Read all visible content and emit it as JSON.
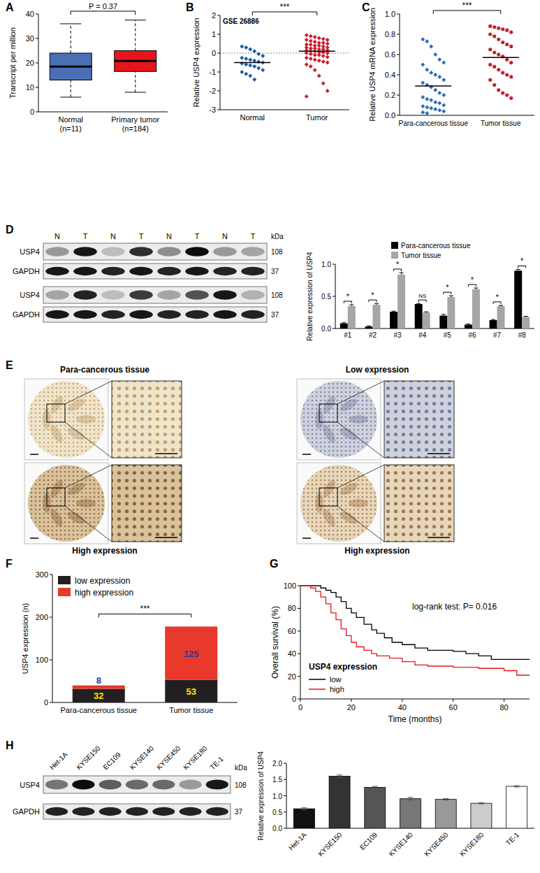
{
  "panels": [
    "A",
    "B",
    "C",
    "D",
    "E",
    "F",
    "G",
    "H"
  ],
  "chart_data": [
    {
      "type": "box",
      "y_label": "Transcript per million",
      "categories": [
        "Normal",
        "Primary tumor"
      ],
      "category_notes": [
        "(n=11)",
        "(n=184)"
      ],
      "boxes": [
        {
          "min": 6,
          "q1": 13,
          "median": 18.5,
          "q3": 24,
          "max": 36
        },
        {
          "min": 8,
          "q1": 16.5,
          "median": 20.8,
          "q3": 25,
          "max": 37.5
        }
      ],
      "colors": [
        "#4a6fb5",
        "#e8141b"
      ],
      "ylim": [
        0,
        40
      ],
      "yticks": [
        0,
        10,
        20,
        30,
        40
      ],
      "annotations": [
        "P = 0.37"
      ]
    },
    {
      "type": "scatter",
      "title": "GSE 26886",
      "y_label": "Relative USP4 expression",
      "categories": [
        "Normal",
        "Tumor"
      ],
      "groups": [
        {
          "color": "#1f5aa6",
          "marker": "diamond",
          "values": [
            0.35,
            0.3,
            0.2,
            0.1,
            -0.05,
            -0.15,
            -0.25,
            -0.3,
            -0.35,
            -0.4,
            -0.45,
            -0.5,
            -0.55,
            -0.6,
            -0.65,
            -0.7,
            -0.8,
            -0.9,
            -1.0,
            -1.1,
            -1.2,
            -1.4
          ],
          "mean": -0.5
        },
        {
          "color": "#c8202a",
          "marker": "diamond",
          "values": [
            0.95,
            0.9,
            0.85,
            0.8,
            0.75,
            0.7,
            0.7,
            0.65,
            0.6,
            0.55,
            0.55,
            0.5,
            0.45,
            0.45,
            0.4,
            0.4,
            0.35,
            0.3,
            0.3,
            0.25,
            0.25,
            0.2,
            0.2,
            0.15,
            0.15,
            0.1,
            0.1,
            0.05,
            0.05,
            0,
            0,
            -0.05,
            -0.1,
            -0.1,
            -0.15,
            -0.2,
            -0.25,
            -0.3,
            -0.35,
            -0.4,
            -0.45,
            -0.5,
            -0.6,
            -0.7,
            -0.9,
            -1.2,
            -1.6,
            -2.0,
            -2.3
          ],
          "mean": 0.1
        }
      ],
      "reference_line": 0,
      "ylim": [
        -3,
        2
      ],
      "yticks": [
        -3,
        -2,
        -1,
        0,
        1,
        2
      ],
      "annotations": [
        "***"
      ]
    },
    {
      "type": "scatter",
      "y_label": "Relative USP4 mRNA expression",
      "categories": [
        "Para-cancerous tissue",
        "Tumor tissue"
      ],
      "groups": [
        {
          "color": "#2e6db4",
          "marker": "diamond",
          "values": [
            0.75,
            0.73,
            0.68,
            0.6,
            0.55,
            0.52,
            0.5,
            0.45,
            0.42,
            0.4,
            0.38,
            0.35,
            0.32,
            0.3,
            0.28,
            0.25,
            0.22,
            0.2,
            0.18,
            0.16,
            0.15,
            0.13,
            0.12,
            0.1,
            0.09,
            0.08,
            0.07,
            0.06,
            0.05,
            0.04,
            0.03,
            0.02
          ],
          "mean": 0.29
        },
        {
          "color": "#c0232d",
          "marker": "circle",
          "values": [
            0.88,
            0.87,
            0.86,
            0.85,
            0.84,
            0.82,
            0.8,
            0.78,
            0.75,
            0.72,
            0.7,
            0.68,
            0.65,
            0.62,
            0.6,
            0.58,
            0.55,
            0.52,
            0.5,
            0.48,
            0.45,
            0.42,
            0.4,
            0.38,
            0.35,
            0.3,
            0.25,
            0.22,
            0.2,
            0.17
          ],
          "mean": 0.57
        }
      ],
      "ylim": [
        0,
        1.0
      ],
      "yticks": [
        {
          "value": 0,
          "label": "0.0"
        },
        {
          "value": 0.2,
          "label": "0.2"
        },
        {
          "value": 0.4,
          "label": "0.4"
        },
        {
          "value": 0.6,
          "label": "0.6"
        },
        {
          "value": 0.8,
          "label": "0.8"
        },
        {
          "value": 1.0,
          "label": "1.0"
        }
      ],
      "annotations": [
        "***"
      ]
    },
    {
      "type": "bar",
      "y_label": "Relative expression of USP4",
      "categories": [
        "#1",
        "#2",
        "#3",
        "#4",
        "#5",
        "#6",
        "#7",
        "#8"
      ],
      "series": [
        {
          "name": "Para-cancerous tissue",
          "color": "#000000",
          "values": [
            0.08,
            0.03,
            0.26,
            0.38,
            0.2,
            0.06,
            0.13,
            0.9
          ],
          "errors": [
            0.01,
            0.01,
            0.01,
            0.01,
            0.02,
            0.01,
            0.01,
            0.02
          ]
        },
        {
          "name": "Tumor tissue",
          "color": "#a6a6a6",
          "values": [
            0.35,
            0.37,
            0.84,
            0.25,
            0.49,
            0.61,
            0.35,
            0.18
          ],
          "errors": [
            0.02,
            0.02,
            0.03,
            0.01,
            0.02,
            0.02,
            0.01,
            0.01
          ]
        }
      ],
      "legend": "top",
      "ylim": [
        0,
        1.0
      ],
      "yticks": [
        {
          "value": 0,
          "label": "0.0"
        },
        {
          "value": 0.5,
          "label": "0.5"
        },
        {
          "value": 1.0,
          "label": "1.0"
        }
      ],
      "annotations": [
        "*",
        "*",
        "*",
        "NS",
        "*",
        "*",
        "*",
        "*"
      ]
    },
    {
      "type": "bar",
      "stacked": true,
      "data_labels": true,
      "y_label": "USP4  expression (n)",
      "categories": [
        "Para-cancerous tissue",
        "Tumor tissue"
      ],
      "series": [
        {
          "name": "low expression",
          "color": "#231f20",
          "values": [
            32,
            53
          ]
        },
        {
          "name": "high expression",
          "color": "#e8392a",
          "values": [
            8,
            125
          ]
        }
      ],
      "legend": "upper left",
      "ylim": [
        0,
        300
      ],
      "yticks": [
        0,
        100,
        200,
        300
      ],
      "annotations": [
        "***"
      ]
    },
    {
      "type": "line",
      "line_style": "step",
      "x_label": "Time (months)",
      "y_label": "Overall survival (%)",
      "legend": "lower left",
      "legend_title": "USP4 expression",
      "series": [
        {
          "name": "low",
          "color": "#000000",
          "x": [
            0,
            5,
            8,
            10,
            12,
            14,
            16,
            18,
            20,
            22,
            25,
            28,
            30,
            33,
            36,
            40,
            45,
            50,
            55,
            60,
            65,
            70,
            75,
            80,
            85,
            90
          ],
          "values": [
            100,
            100,
            98,
            96,
            94,
            90,
            86,
            80,
            76,
            72,
            66,
            61,
            58,
            54,
            50,
            48,
            45,
            43,
            43,
            42,
            40,
            38,
            35,
            35,
            35,
            35
          ]
        },
        {
          "name": "high",
          "color": "#e8141b",
          "x": [
            0,
            4,
            6,
            8,
            10,
            12,
            14,
            16,
            18,
            20,
            22,
            25,
            28,
            30,
            35,
            40,
            45,
            50,
            60,
            70,
            80,
            85,
            90
          ],
          "values": [
            100,
            98,
            95,
            90,
            84,
            76,
            70,
            62,
            56,
            50,
            46,
            43,
            40,
            38,
            36,
            33,
            30,
            29,
            28,
            27,
            25,
            21,
            21
          ]
        }
      ],
      "xlim": [
        0,
        90
      ],
      "xticks": [
        0,
        20,
        40,
        60,
        80
      ],
      "ylim": [
        0,
        100
      ],
      "yticks": [
        0,
        20,
        40,
        60,
        80,
        100
      ],
      "annotations": [
        "log-rank test: P= 0.016"
      ]
    },
    {
      "type": "bar",
      "y_label": "Relative expression of USP4",
      "categories": [
        "Het-1A",
        "KYSE150",
        "EC109",
        "KYSE140",
        "KYSE450",
        "KYSE180",
        "TE-1"
      ],
      "values": [
        0.6,
        1.6,
        1.26,
        0.91,
        0.89,
        0.77,
        1.29
      ],
      "errors": [
        0.03,
        0.04,
        0.03,
        0.04,
        0.02,
        0.02,
        0.02
      ],
      "colors": [
        "#111111",
        "#333333",
        "#555555",
        "#777777",
        "#999999",
        "#cccccc",
        "#ffffff"
      ],
      "ylim": [
        0,
        2.0
      ],
      "yticks": [
        {
          "value": 0,
          "label": "0.0"
        },
        {
          "value": 0.5,
          "label": "0.5"
        },
        {
          "value": 1.0,
          "label": "1.0"
        },
        {
          "value": 1.5,
          "label": "1.5"
        },
        {
          "value": 2.0,
          "label": "2.0"
        }
      ]
    }
  ],
  "blots": [
    {
      "lanes": [
        "N",
        "T",
        "N",
        "T",
        "N",
        "T",
        "N",
        "T"
      ],
      "unit": "kDa",
      "rows": [
        {
          "label": "USP4",
          "kda": 108,
          "intensity": [
            0.35,
            0.9,
            0.2,
            0.8,
            0.4,
            0.95,
            0.35,
            0.3
          ]
        },
        {
          "label": "GAPDH",
          "kda": 37,
          "intensity": [
            0.9,
            0.9,
            0.85,
            0.9,
            0.85,
            0.9,
            0.85,
            0.85
          ]
        },
        {
          "label": "USP4",
          "kda": 108,
          "intensity": [
            0.3,
            0.85,
            0.2,
            0.75,
            0.3,
            0.65,
            0.9,
            0.25
          ]
        },
        {
          "label": "GAPDH",
          "kda": 37,
          "intensity": [
            0.9,
            0.9,
            0.85,
            0.9,
            0.85,
            0.85,
            0.9,
            0.85
          ]
        }
      ]
    },
    {
      "lanes": [
        "Het-1A",
        "KYSE150",
        "EC109",
        "KYSE140",
        "KYSE450",
        "KYSE180",
        "TE-1"
      ],
      "unit": "kDa",
      "rows": [
        {
          "label": "USP4",
          "kda": 108,
          "intensity": [
            0.5,
            0.95,
            0.6,
            0.55,
            0.55,
            0.35,
            0.9
          ]
        },
        {
          "label": "GAPDH",
          "kda": 37,
          "intensity": [
            0.85,
            0.85,
            0.85,
            0.85,
            0.85,
            0.85,
            0.85
          ]
        }
      ]
    }
  ],
  "ihc": {
    "labels": [
      "Para-cancerous tissue",
      "Low expression",
      "High expression",
      "High expression"
    ]
  }
}
